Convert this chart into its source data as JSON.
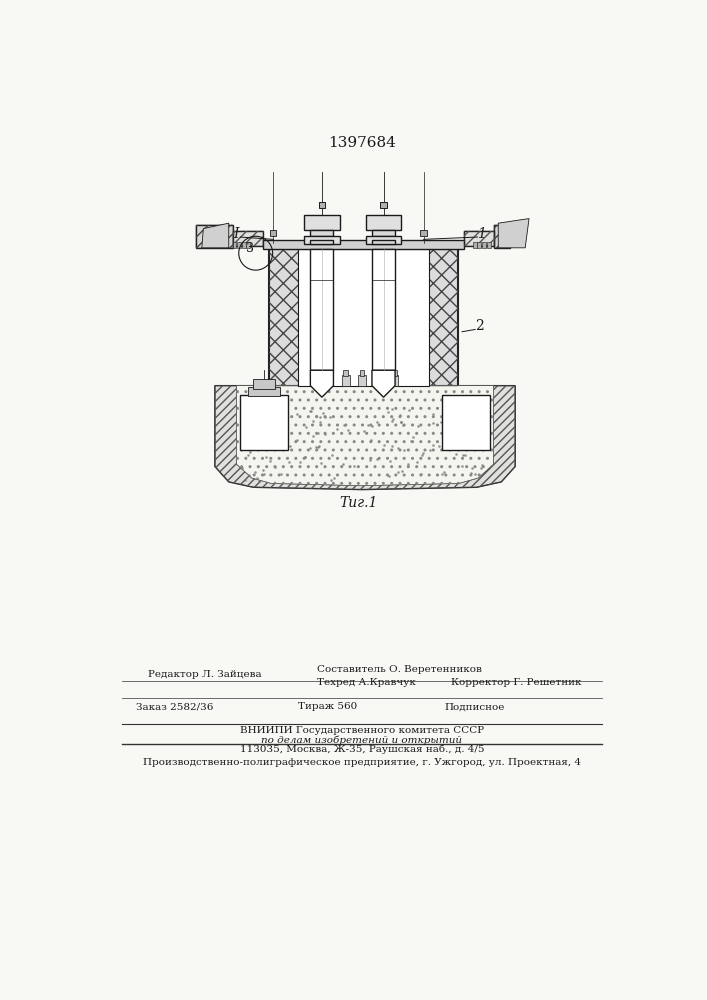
{
  "patent_number": "1397684",
  "fig_label": "Τиг.1",
  "label_1": "1",
  "label_2": "2",
  "label_3": "3",
  "label_I": "I",
  "editor_line": "Редактор Л. Зайцева",
  "composer_line": "Составитель О. Веретенников",
  "techred_line": "Техред А.Кравчук",
  "corrector_line": "Корректор Г. Решетник",
  "order_line": "Заказ 2582/36",
  "tirazh_line": "Тираж 560",
  "podpisnoe_line": "Подписное",
  "vniiipi_line1": "ВНИИПИ Государственного комитета СССР",
  "vniiipi_line2": "по делам изобретений и открытий",
  "vniiipi_line3": "113035, Москва, Ж-35, Раушская наб., д. 4/5",
  "production_line": "Производственно-полиграфическое предприятие, г. Ужгород, ул. Проектная, 4",
  "bg_color": "#f8f8f5",
  "line_color": "#1a1a1a"
}
